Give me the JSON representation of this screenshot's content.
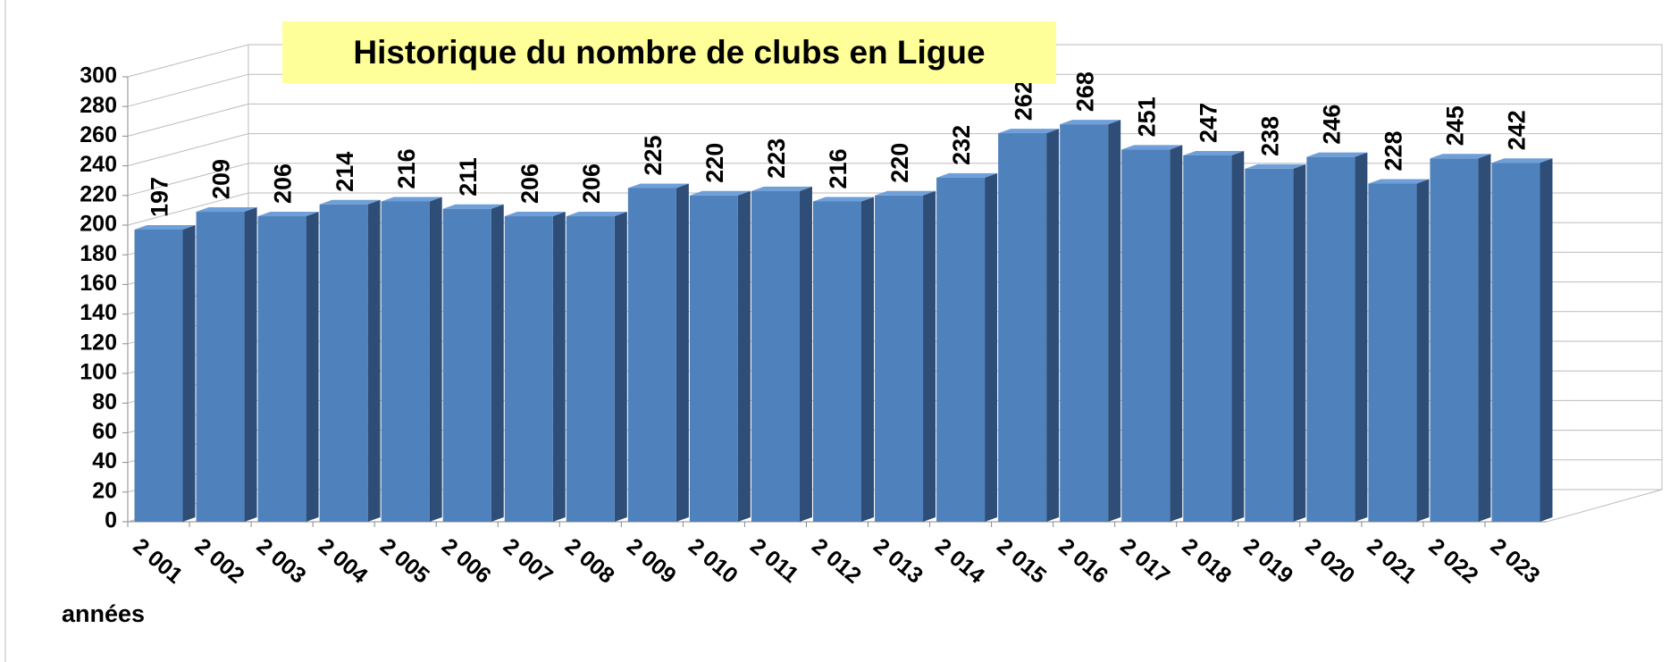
{
  "chart_data": {
    "type": "bar3d",
    "title": "Historique du nombre de clubs en Ligue",
    "x_label": "années",
    "categories": [
      "2 001",
      "2 002",
      "2 003",
      "2 004",
      "2 005",
      "2 006",
      "2 007",
      "2 008",
      "2 009",
      "2 010",
      "2 011",
      "2 012",
      "2 013",
      "2 014",
      "2 015",
      "2 016",
      "2 017",
      "2 018",
      "2 019",
      "2 020",
      "2 021",
      "2 022",
      "2 023"
    ],
    "values": [
      197,
      209,
      206,
      214,
      216,
      211,
      206,
      206,
      225,
      220,
      223,
      216,
      220,
      232,
      262,
      268,
      251,
      247,
      238,
      246,
      228,
      245,
      242
    ],
    "color": "#4f81bd",
    "ylim": [
      0,
      300
    ],
    "yticks": [
      0,
      20,
      40,
      60,
      80,
      100,
      120,
      140,
      160,
      180,
      200,
      220,
      240,
      260,
      280,
      300
    ],
    "grid": true
  }
}
